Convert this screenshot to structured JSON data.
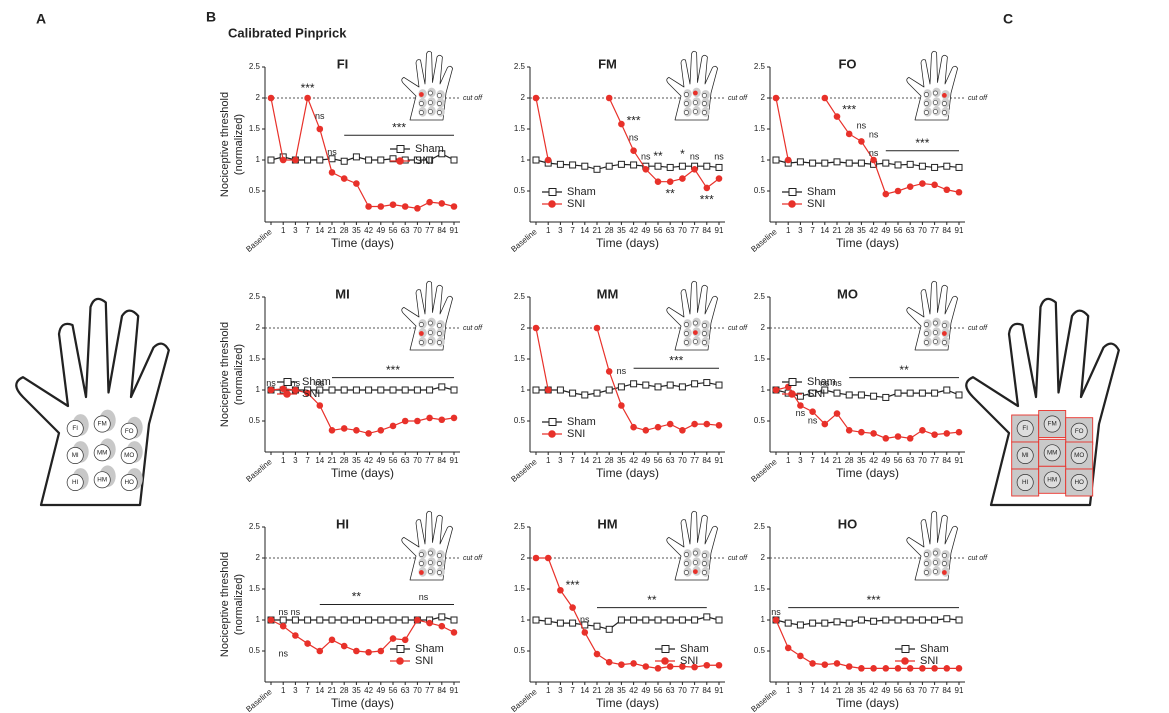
{
  "panel_labels": [
    "A",
    "B",
    "C"
  ],
  "heading": "Calibrated Pinprick",
  "hand_regions": [
    "FI",
    "FM",
    "FO",
    "MI",
    "MM",
    "MO",
    "HI",
    "HM",
    "HO"
  ],
  "chart_data": [
    {
      "type": "line",
      "title": "FI",
      "ylabel": [
        "Nociceptive threshold",
        "(normalized)"
      ],
      "xlabel": "Time (days)",
      "categories": [
        "Baseline",
        "1",
        "3",
        "7",
        "14",
        "21",
        "28",
        "35",
        "42",
        "49",
        "56",
        "63",
        "70",
        "77",
        "84",
        "91"
      ],
      "ylim": [
        0,
        2.5
      ],
      "yticks": [
        0.5,
        1,
        1.5,
        2,
        2.5
      ],
      "cutoff": {
        "value": 2,
        "label": "cut off"
      },
      "legend": "center right",
      "series": [
        {
          "name": "Sham",
          "color": "#222222",
          "marker": "square",
          "values": [
            1,
            1.05,
            1,
            1,
            1,
            1.02,
            0.98,
            1.05,
            1,
            1,
            1.02,
            1,
            1,
            1,
            1.1,
            1
          ]
        },
        {
          "name": "SNI",
          "color": "#e8312a",
          "marker": "circle",
          "values": [
            2,
            1,
            1,
            2,
            1.5,
            0.8,
            0.7,
            0.62,
            0.25,
            0.25,
            0.28,
            0.25,
            0.22,
            0.32,
            0.3,
            0.25
          ]
        }
      ],
      "annotations": [
        {
          "text": "***",
          "x": "7",
          "y": 2.15
        },
        {
          "text": "ns",
          "x": "14",
          "y": 1.7
        },
        {
          "text": "ns",
          "x": "21",
          "y": 1.12
        }
      ],
      "brackets": [
        {
          "text": "***",
          "from": "28",
          "to": "91",
          "y": 1.4
        }
      ]
    },
    {
      "type": "line",
      "title": "FM",
      "xlabel": "Time (days)",
      "categories": [
        "Baseline",
        "1",
        "3",
        "7",
        "14",
        "21",
        "28",
        "35",
        "42",
        "49",
        "56",
        "63",
        "70",
        "77",
        "84",
        "91"
      ],
      "ylim": [
        0,
        2.5
      ],
      "yticks": [
        0.5,
        1,
        1.5,
        2,
        2.5
      ],
      "cutoff": {
        "value": 2,
        "label": "cut off"
      },
      "legend": "lower left",
      "series": [
        {
          "name": "Sham",
          "color": "#222222",
          "marker": "square",
          "values": [
            1,
            0.95,
            0.93,
            0.92,
            0.9,
            0.85,
            0.9,
            0.93,
            0.92,
            0.9,
            0.9,
            0.88,
            0.9,
            0.9,
            0.9,
            0.88
          ]
        },
        {
          "name": "SNI",
          "color": "#e8312a",
          "marker": "circle",
          "values": [
            2,
            1,
            null,
            null,
            null,
            null,
            2,
            1.58,
            1.15,
            0.85,
            0.65,
            0.65,
            0.7,
            0.85,
            0.55,
            0.7
          ]
        }
      ],
      "annotations": [
        {
          "text": "***",
          "x": "42",
          "y": 1.62
        },
        {
          "text": "ns",
          "x": "42",
          "y": 1.35
        },
        {
          "text": "ns",
          "x": "49",
          "y": 1.05
        },
        {
          "text": "**",
          "x": "56",
          "y": 1.05
        },
        {
          "text": "*",
          "x": "70",
          "y": 1.08
        },
        {
          "text": "ns",
          "x": "77",
          "y": 1.05
        },
        {
          "text": "ns",
          "x": "91",
          "y": 1.05
        },
        {
          "text": "**",
          "x": "63",
          "y": 0.45
        },
        {
          "text": "***",
          "x": "84",
          "y": 0.35
        }
      ],
      "brackets": []
    },
    {
      "type": "line",
      "title": "FO",
      "xlabel": "Time (days)",
      "categories": [
        "Baseline",
        "1",
        "3",
        "7",
        "14",
        "21",
        "28",
        "35",
        "42",
        "49",
        "56",
        "63",
        "70",
        "77",
        "84",
        "91"
      ],
      "ylim": [
        0,
        2.5
      ],
      "yticks": [
        0.5,
        1,
        1.5,
        2,
        2.5
      ],
      "cutoff": {
        "value": 2,
        "label": "cut off"
      },
      "legend": "lower left",
      "series": [
        {
          "name": "Sham",
          "color": "#222222",
          "marker": "square",
          "values": [
            1,
            0.95,
            0.97,
            0.95,
            0.95,
            0.97,
            0.95,
            0.95,
            0.93,
            0.95,
            0.92,
            0.93,
            0.9,
            0.88,
            0.9,
            0.88
          ]
        },
        {
          "name": "SNI",
          "color": "#e8312a",
          "marker": "circle",
          "values": [
            2,
            1,
            null,
            null,
            2,
            1.7,
            1.42,
            1.3,
            1.0,
            0.45,
            0.5,
            0.57,
            0.62,
            0.6,
            0.52,
            0.48
          ]
        }
      ],
      "annotations": [
        {
          "text": "***",
          "x": "28",
          "y": 1.8
        },
        {
          "text": "ns",
          "x": "35",
          "y": 1.55
        },
        {
          "text": "ns",
          "x": "42",
          "y": 1.4
        },
        {
          "text": "ns",
          "x": "42",
          "y": 1.1
        }
      ],
      "brackets": [
        {
          "text": "***",
          "from": "49",
          "to": "91",
          "y": 1.15
        }
      ]
    },
    {
      "type": "line",
      "title": "MI",
      "ylabel": [
        "Nociceptive threshold",
        "(normalized)"
      ],
      "xlabel": "Time (days)",
      "categories": [
        "Baseline",
        "1",
        "3",
        "7",
        "14",
        "21",
        "28",
        "35",
        "42",
        "49",
        "56",
        "63",
        "70",
        "77",
        "84",
        "91"
      ],
      "ylim": [
        0,
        2.5
      ],
      "yticks": [
        0.5,
        1,
        1.5,
        2,
        2.5
      ],
      "cutoff": {
        "value": 2,
        "label": "cut off"
      },
      "legend": "upper left",
      "series": [
        {
          "name": "Sham",
          "color": "#222222",
          "marker": "square",
          "values": [
            1,
            1,
            1,
            1,
            1,
            1,
            1,
            1,
            1,
            1,
            1,
            1,
            1,
            1,
            1.05,
            1
          ]
        },
        {
          "name": "SNI",
          "color": "#e8312a",
          "marker": "circle",
          "values": [
            1,
            1.02,
            1,
            0.95,
            0.75,
            0.35,
            0.38,
            0.35,
            0.3,
            0.35,
            0.42,
            0.5,
            0.5,
            0.55,
            0.52,
            0.55
          ]
        }
      ],
      "annotations": [
        {
          "text": "ns",
          "x": "Baseline",
          "y": 1.1
        },
        {
          "text": "ns",
          "x": "3",
          "y": 1.1
        },
        {
          "text": "ns",
          "x": "14",
          "y": 1.1
        }
      ],
      "brackets": [
        {
          "text": "***",
          "from": "21",
          "to": "91",
          "y": 1.2
        }
      ]
    },
    {
      "type": "line",
      "title": "MM",
      "xlabel": "Time (days)",
      "categories": [
        "Baseline",
        "1",
        "3",
        "7",
        "14",
        "21",
        "28",
        "35",
        "42",
        "49",
        "56",
        "63",
        "70",
        "77",
        "84",
        "91"
      ],
      "ylim": [
        0,
        2.5
      ],
      "yticks": [
        0.5,
        1,
        1.5,
        2,
        2.5
      ],
      "cutoff": {
        "value": 2,
        "label": "cut off"
      },
      "legend": "lower left",
      "series": [
        {
          "name": "Sham",
          "color": "#222222",
          "marker": "square",
          "values": [
            1,
            1,
            1,
            0.95,
            0.92,
            0.95,
            1,
            1.05,
            1.1,
            1.08,
            1.05,
            1.08,
            1.05,
            1.1,
            1.12,
            1.08
          ]
        },
        {
          "name": "SNI",
          "color": "#e8312a",
          "marker": "circle",
          "values": [
            2,
            1,
            null,
            null,
            null,
            2,
            1.3,
            0.75,
            0.4,
            0.35,
            0.4,
            0.45,
            0.35,
            0.45,
            0.45,
            0.43
          ]
        }
      ],
      "annotations": [
        {
          "text": "ns",
          "x": "35",
          "y": 1.3
        }
      ],
      "brackets": [
        {
          "text": "***",
          "from": "42",
          "to": "91",
          "y": 1.35
        }
      ]
    },
    {
      "type": "line",
      "title": "MO",
      "xlabel": "Time (days)",
      "categories": [
        "Baseline",
        "1",
        "3",
        "7",
        "14",
        "21",
        "28",
        "35",
        "42",
        "49",
        "56",
        "63",
        "70",
        "77",
        "84",
        "91"
      ],
      "ylim": [
        0,
        2.5
      ],
      "yticks": [
        0.5,
        1,
        1.5,
        2,
        2.5
      ],
      "cutoff": {
        "value": 2,
        "label": "cut off"
      },
      "legend": "upper left",
      "series": [
        {
          "name": "Sham",
          "color": "#222222",
          "marker": "square",
          "values": [
            1,
            0.95,
            0.9,
            0.95,
            1,
            0.95,
            0.92,
            0.92,
            0.9,
            0.88,
            0.95,
            0.95,
            0.95,
            0.95,
            1,
            0.92
          ]
        },
        {
          "name": "SNI",
          "color": "#e8312a",
          "marker": "circle",
          "values": [
            1,
            1.05,
            0.75,
            0.65,
            0.45,
            0.62,
            0.35,
            0.32,
            0.3,
            0.22,
            0.25,
            0.22,
            0.35,
            0.28,
            0.3,
            0.32
          ]
        }
      ],
      "annotations": [
        {
          "text": "ns",
          "x": "14",
          "y": 1.1
        },
        {
          "text": "ns",
          "x": "21",
          "y": 1.1
        },
        {
          "text": "ns",
          "x": "3",
          "y": 0.62
        },
        {
          "text": "ns",
          "x": "7",
          "y": 0.5
        }
      ],
      "brackets": [
        {
          "text": "**",
          "from": "28",
          "to": "91",
          "y": 1.2
        }
      ]
    },
    {
      "type": "line",
      "title": "HI",
      "ylabel": [
        "Nociceptive  threshold",
        "(normalized)"
      ],
      "xlabel": "Time (days)",
      "categories": [
        "Baseline",
        "1",
        "3",
        "7",
        "14",
        "21",
        "28",
        "35",
        "42",
        "49",
        "56",
        "63",
        "70",
        "77",
        "84",
        "91"
      ],
      "ylim": [
        0,
        2.5
      ],
      "yticks": [
        0.5,
        1,
        1.5,
        2,
        2.5
      ],
      "cutoff": {
        "value": 2,
        "label": "cut off"
      },
      "legend": "lower right",
      "series": [
        {
          "name": "Sham",
          "color": "#222222",
          "marker": "square",
          "values": [
            1,
            1,
            1,
            1,
            1,
            1,
            1,
            1,
            1,
            1,
            1,
            1,
            1,
            1,
            1.05,
            1
          ]
        },
        {
          "name": "SNI",
          "color": "#e8312a",
          "marker": "circle",
          "values": [
            1,
            0.9,
            0.75,
            0.62,
            0.5,
            0.68,
            0.58,
            0.5,
            0.48,
            0.5,
            0.7,
            0.68,
            1.0,
            0.95,
            0.9,
            0.8
          ]
        }
      ],
      "annotations": [
        {
          "text": "ns",
          "x": "1",
          "y": 1.12
        },
        {
          "text": "ns",
          "x": "3",
          "y": 1.12
        },
        {
          "text": "ns",
          "x": "1",
          "y": 0.45
        }
      ],
      "brackets": [
        {
          "text": "**",
          "from": "14",
          "to": "56",
          "y": 1.25
        },
        {
          "text": "ns",
          "from": "56",
          "to": "91",
          "y": 1.25
        }
      ]
    },
    {
      "type": "line",
      "title": "HM",
      "xlabel": "Time (days)",
      "categories": [
        "Baseline",
        "1",
        "3",
        "7",
        "14",
        "21",
        "28",
        "35",
        "42",
        "49",
        "56",
        "63",
        "70",
        "77",
        "84",
        "91"
      ],
      "ylim": [
        0,
        2.5
      ],
      "yticks": [
        0.5,
        1,
        1.5,
        2,
        2.5
      ],
      "cutoff": {
        "value": 2,
        "label": "cut off"
      },
      "legend": "lower right",
      "series": [
        {
          "name": "Sham",
          "color": "#222222",
          "marker": "square",
          "values": [
            1,
            0.98,
            0.95,
            0.95,
            0.92,
            0.9,
            0.85,
            1,
            1,
            1,
            1,
            1,
            1,
            1,
            1.05,
            1
          ]
        },
        {
          "name": "SNI",
          "color": "#e8312a",
          "marker": "circle",
          "values": [
            2,
            2,
            1.48,
            1.2,
            0.8,
            0.45,
            0.32,
            0.28,
            0.3,
            0.25,
            0.22,
            0.25,
            0.25,
            0.24,
            0.27,
            0.27
          ]
        }
      ],
      "annotations": [
        {
          "text": "***",
          "x": "7",
          "y": 1.55
        },
        {
          "text": "ns",
          "x": "14",
          "y": 1.0
        }
      ],
      "brackets": [
        {
          "text": "**",
          "from": "21",
          "to": "84",
          "y": 1.2
        }
      ]
    },
    {
      "type": "line",
      "title": "HO",
      "xlabel": "Time (days)",
      "categories": [
        "Baseline",
        "1",
        "3",
        "7",
        "14",
        "21",
        "28",
        "35",
        "42",
        "49",
        "56",
        "63",
        "70",
        "77",
        "84",
        "91"
      ],
      "ylim": [
        0,
        2.5
      ],
      "yticks": [
        0.5,
        1,
        1.5,
        2,
        2.5
      ],
      "cutoff": {
        "value": 2,
        "label": "cut off"
      },
      "legend": "lower right",
      "series": [
        {
          "name": "Sham",
          "color": "#222222",
          "marker": "square",
          "values": [
            1,
            0.95,
            0.92,
            0.95,
            0.95,
            0.97,
            0.95,
            1,
            0.98,
            1,
            1,
            1,
            1,
            1,
            1.02,
            1
          ]
        },
        {
          "name": "SNI",
          "color": "#e8312a",
          "marker": "circle",
          "values": [
            1,
            0.55,
            0.42,
            0.3,
            0.28,
            0.3,
            0.25,
            0.22,
            0.22,
            0.22,
            0.22,
            0.22,
            0.22,
            0.22,
            0.22,
            0.22
          ]
        }
      ],
      "annotations": [
        {
          "text": "ns",
          "x": "Baseline",
          "y": 1.12
        }
      ],
      "brackets": [
        {
          "text": "***",
          "from": "1",
          "to": "91",
          "y": 1.2
        }
      ]
    }
  ]
}
